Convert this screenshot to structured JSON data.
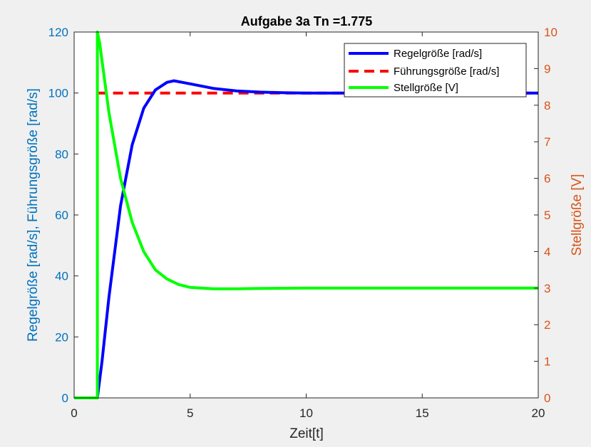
{
  "chart_data": {
    "type": "line",
    "title": "Aufgabe 3a Tn =1.775",
    "xlabel": "Zeit[t]",
    "ylabel_left": "Regelgröße [rad/s], Führungsgröße [rad/s]",
    "ylabel_right": "Stellgröße [V]",
    "xlim": [
      0,
      20
    ],
    "ylim_left": [
      0,
      120
    ],
    "ylim_right": [
      0,
      10
    ],
    "x_ticks": [
      "0",
      "5",
      "10",
      "15",
      "20"
    ],
    "y_left_ticks": [
      "0",
      "20",
      "40",
      "60",
      "80",
      "100",
      "120"
    ],
    "y_right_ticks": [
      "0",
      "1",
      "2",
      "3",
      "4",
      "5",
      "6",
      "7",
      "8",
      "9",
      "10"
    ],
    "grid": false,
    "legend_position": "top-right",
    "series": [
      {
        "name": "Regelgröße [rad/s]",
        "axis": "left",
        "color": "#0000ff",
        "style": "solid",
        "x": [
          0,
          1,
          1.2,
          1.5,
          2,
          2.5,
          3,
          3.5,
          4,
          4.3,
          5,
          6,
          7,
          8,
          9,
          10,
          12,
          15,
          20
        ],
        "y": [
          0,
          0,
          12,
          33,
          63,
          83,
          95,
          101,
          103.5,
          104,
          103,
          101.5,
          100.7,
          100.3,
          100.1,
          100,
          100,
          100,
          100
        ]
      },
      {
        "name": "Führungsgröße [rad/s]",
        "axis": "left",
        "color": "#ff0000",
        "style": "dashed",
        "x": [
          1,
          20
        ],
        "y": [
          100,
          100
        ]
      },
      {
        "name": "Stellgröße [V]",
        "axis": "right",
        "color": "#00ff00",
        "style": "solid",
        "x": [
          0,
          1,
          1,
          1.1,
          1.5,
          2,
          2.5,
          3,
          3.5,
          4,
          4.5,
          5,
          5.5,
          6,
          7,
          8,
          10,
          15,
          20
        ],
        "y": [
          0,
          0,
          10,
          9.7,
          7.8,
          6.0,
          4.8,
          4.0,
          3.5,
          3.25,
          3.1,
          3.02,
          3.0,
          2.98,
          2.98,
          2.99,
          3.0,
          3.0,
          3.0
        ]
      }
    ]
  }
}
